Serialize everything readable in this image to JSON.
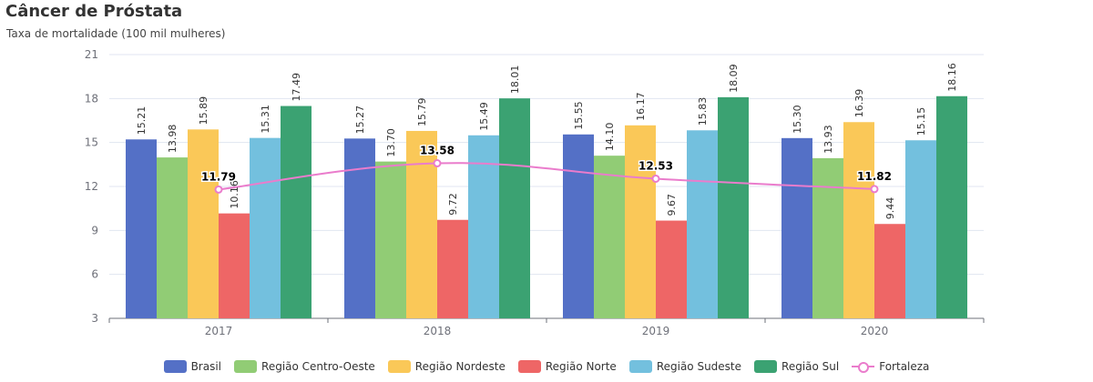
{
  "chart_data": {
    "type": "bar",
    "title": "Câncer de Próstata",
    "subtitle": "Taxa de mortalidade (100 mil mulheres)",
    "categories": [
      "2017",
      "2018",
      "2019",
      "2020"
    ],
    "ylim": [
      3,
      21
    ],
    "yticks": [
      "3",
      "6",
      "9",
      "12",
      "15",
      "18",
      "21"
    ],
    "grid": true,
    "legend_position": "bottom",
    "series": [
      {
        "name": "Brasil",
        "type": "bar",
        "color": "#5470c6",
        "values": [
          15.21,
          15.27,
          15.55,
          15.3
        ],
        "labels": [
          "15.21",
          "15.27",
          "15.55",
          "15.30"
        ]
      },
      {
        "name": "Região Centro-Oeste",
        "type": "bar",
        "color": "#91cc75",
        "values": [
          13.98,
          13.7,
          14.1,
          13.93
        ],
        "labels": [
          "13.98",
          "13.70",
          "14.10",
          "13.93"
        ]
      },
      {
        "name": "Região Nordeste",
        "type": "bar",
        "color": "#fac858",
        "values": [
          15.89,
          15.79,
          16.17,
          16.39
        ],
        "labels": [
          "15.89",
          "15.79",
          "16.17",
          "16.39"
        ]
      },
      {
        "name": "Região Norte",
        "type": "bar",
        "color": "#ee6666",
        "values": [
          10.16,
          9.72,
          9.67,
          9.44
        ],
        "labels": [
          "10.16",
          "9.72",
          "9.67",
          "9.44"
        ]
      },
      {
        "name": "Região Sudeste",
        "type": "bar",
        "color": "#73c0de",
        "values": [
          15.31,
          15.49,
          15.83,
          15.15
        ],
        "labels": [
          "15.31",
          "15.49",
          "15.83",
          "15.15"
        ]
      },
      {
        "name": "Região Sul",
        "type": "bar",
        "color": "#3ba272",
        "values": [
          17.49,
          18.01,
          18.09,
          18.16
        ],
        "labels": [
          "17.49",
          "18.01",
          "18.09",
          "18.16"
        ]
      },
      {
        "name": "Fortaleza",
        "type": "line",
        "color": "#ea7ccc",
        "values": [
          11.79,
          13.58,
          12.53,
          11.82
        ],
        "labels": [
          "11.79",
          "13.58",
          "12.53",
          "11.82"
        ]
      }
    ]
  }
}
